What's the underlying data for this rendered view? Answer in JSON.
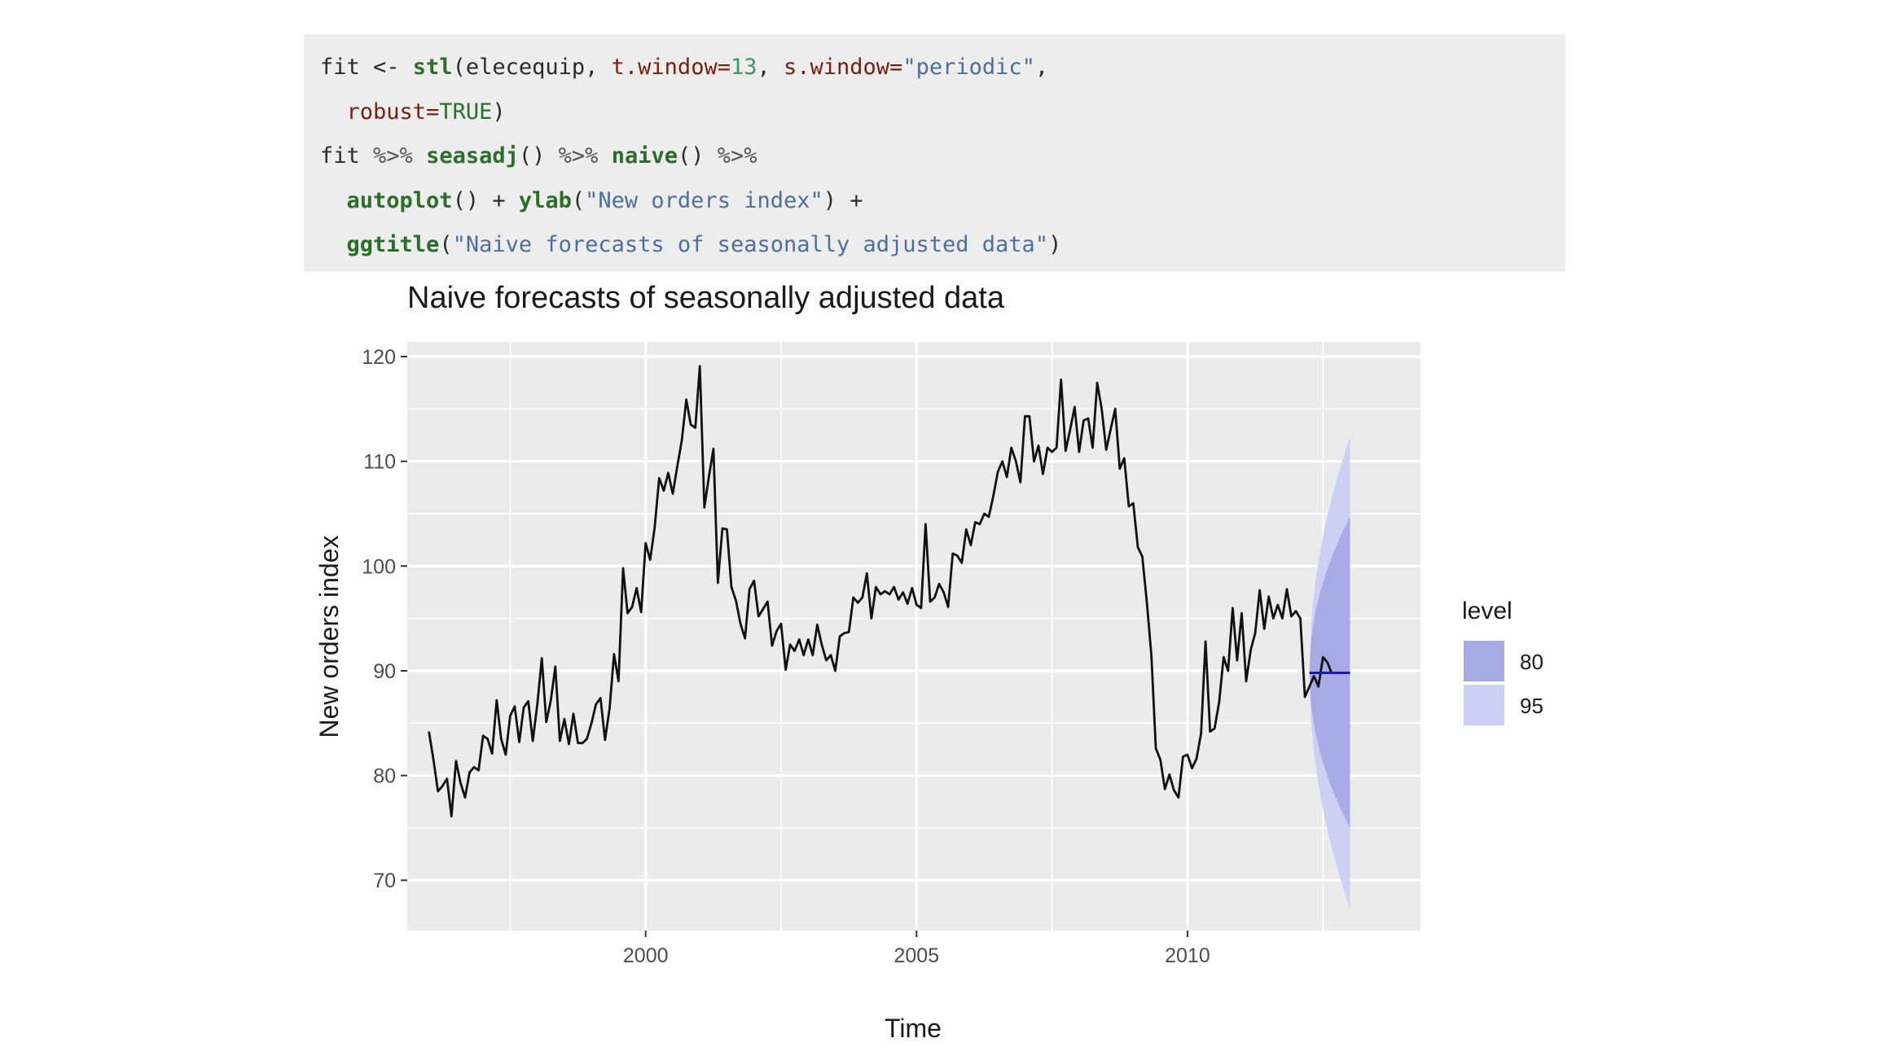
{
  "code": {
    "lines": [
      [
        [
          "plain",
          "fit <- "
        ],
        [
          "fn",
          "stl"
        ],
        [
          "plain",
          "(elecequip, "
        ],
        [
          "arg",
          "t.window="
        ],
        [
          "num",
          "13"
        ],
        [
          "plain",
          ", "
        ],
        [
          "arg",
          "s.window="
        ],
        [
          "str",
          "\"periodic\""
        ],
        [
          "plain",
          ","
        ]
      ],
      [
        [
          "plain",
          "  "
        ],
        [
          "arg",
          "robust="
        ],
        [
          "const",
          "TRUE"
        ],
        [
          "plain",
          ")"
        ]
      ],
      [
        [
          "plain",
          "fit "
        ],
        [
          "op",
          "%>%"
        ],
        [
          "plain",
          " "
        ],
        [
          "fn",
          "seasadj"
        ],
        [
          "plain",
          "() "
        ],
        [
          "op",
          "%>%"
        ],
        [
          "plain",
          " "
        ],
        [
          "fn",
          "naive"
        ],
        [
          "plain",
          "() "
        ],
        [
          "op",
          "%>%"
        ]
      ],
      [
        [
          "plain",
          "  "
        ],
        [
          "fn",
          "autoplot"
        ],
        [
          "plain",
          "() + "
        ],
        [
          "fn",
          "ylab"
        ],
        [
          "plain",
          "("
        ],
        [
          "str",
          "\"New orders index\""
        ],
        [
          "plain",
          ") +"
        ]
      ],
      [
        [
          "plain",
          "  "
        ],
        [
          "fn",
          "ggtitle"
        ],
        [
          "plain",
          "("
        ],
        [
          "str",
          "\"Naive forecasts of seasonally adjusted data\""
        ],
        [
          "plain",
          ")"
        ]
      ]
    ]
  },
  "chart_data": {
    "type": "line",
    "title": "Naive forecasts of seasonally adjusted data",
    "xlabel": "Time",
    "ylabel": "New orders index",
    "xlim": [
      1995.6,
      2014.3
    ],
    "ylim": [
      65.2,
      121.4
    ],
    "xticks": [
      2000,
      2005,
      2010
    ],
    "xtick_labels": [
      "2000",
      "2005",
      "2010"
    ],
    "yticks": [
      70,
      80,
      90,
      100,
      110,
      120
    ],
    "ytick_labels": [
      "70",
      "80",
      "90",
      "100",
      "110",
      "120"
    ],
    "grid": true,
    "legend": {
      "title": "level",
      "placement": "right",
      "entries": [
        {
          "label": "80",
          "color": "#a6abe6"
        },
        {
          "label": "95",
          "color": "#ccd0f5"
        }
      ]
    },
    "colors": {
      "panel": "#ebebeb",
      "grid": "#ffffff",
      "series": "#111111",
      "forecast_line": "#1a1ab4",
      "band80": "#a6abe6",
      "band95": "#ccd0f5"
    },
    "series": [
      {
        "start": 1996.0,
        "frequency": 12,
        "values": [
          84.2,
          81.5,
          78.5,
          79.0,
          79.7,
          76.1,
          81.4,
          79.3,
          77.9,
          80.3,
          80.8,
          80.5,
          83.8,
          83.5,
          82.1,
          87.2,
          83.5,
          82.0,
          85.7,
          86.6,
          83.2,
          86.5,
          87.1,
          83.3,
          86.8,
          91.2,
          85.1,
          87.2,
          90.4,
          83.3,
          85.4,
          83.0,
          85.9,
          83.1,
          83.1,
          83.5,
          85.0,
          86.8,
          87.4,
          83.4,
          86.4,
          91.6,
          89.0,
          99.8,
          95.5,
          96.1,
          97.9,
          95.6,
          102.2,
          100.6,
          103.7,
          108.4,
          107.2,
          108.9,
          106.9,
          109.5,
          112.0,
          115.9,
          113.5,
          113.2,
          119.1,
          105.6,
          108.5,
          111.2,
          98.4,
          103.6,
          103.5,
          98.0,
          96.7,
          94.5,
          93.1,
          97.8,
          98.6,
          95.2,
          95.9,
          96.6,
          92.4,
          93.8,
          94.5,
          90.1,
          92.5,
          91.9,
          93.0,
          91.5,
          93.0,
          91.5,
          94.4,
          92.5,
          91.0,
          91.5,
          90.0,
          93.3,
          93.6,
          93.7,
          97.0,
          96.5,
          97.0,
          99.3,
          95.0,
          98.0,
          97.3,
          97.6,
          97.3,
          98.0,
          96.8,
          97.5,
          96.4,
          97.9,
          96.3,
          96.0,
          104.0,
          96.6,
          97.0,
          98.3,
          97.5,
          96.1,
          101.2,
          101.0,
          100.3,
          103.5,
          102.0,
          104.2,
          104.0,
          105.0,
          104.7,
          106.7,
          109.0,
          110.0,
          108.5,
          111.3,
          110.0,
          108.0,
          114.3,
          114.3,
          110.0,
          111.5,
          108.8,
          111.3,
          110.9,
          111.3,
          117.8,
          111.0,
          113.0,
          115.2,
          110.9,
          113.9,
          114.1,
          111.3,
          117.5,
          115.0,
          111.1,
          113.1,
          115.0,
          109.3,
          110.3,
          105.7,
          106.0,
          101.8,
          100.9,
          96.5,
          91.5,
          82.6,
          81.5,
          78.7,
          80.1,
          78.6,
          77.9,
          81.8,
          82.0,
          80.7,
          81.6,
          84.0,
          92.8,
          84.2,
          84.5,
          87.0,
          91.3,
          90.0,
          96.0,
          91.0,
          95.5,
          89.0,
          92.0,
          93.6,
          97.7,
          94.0,
          97.1,
          95.0,
          96.3,
          95.0,
          97.8,
          95.2,
          95.7,
          95.0,
          87.5,
          88.5,
          89.5,
          88.5,
          91.3,
          90.8,
          89.7
        ]
      }
    ],
    "forecast": {
      "start": 2012.25,
      "end": 2013.0,
      "point": 89.8,
      "lower80_end": 75.0,
      "upper80_end": 104.7,
      "lower95_end": 67.3,
      "upper95_end": 112.3
    }
  }
}
